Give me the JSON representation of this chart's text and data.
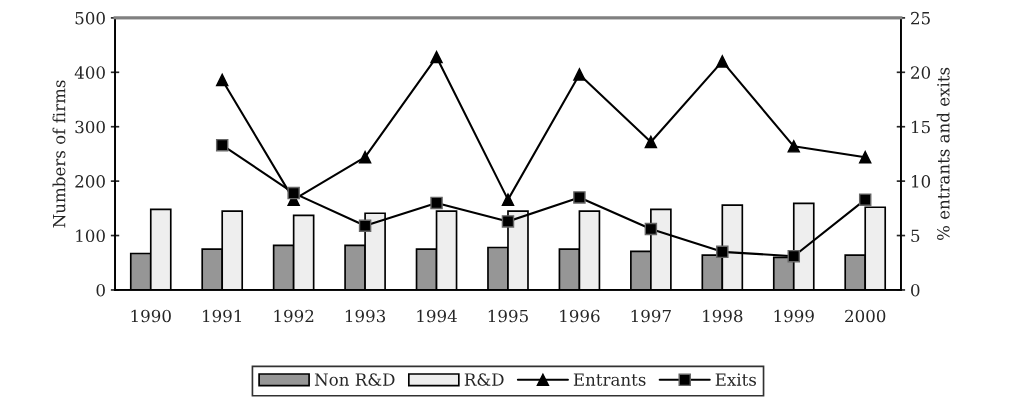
{
  "chart_data": {
    "type": "bar",
    "categories": [
      "1990",
      "1991",
      "1992",
      "1993",
      "1994",
      "1995",
      "1996",
      "1997",
      "1998",
      "1999",
      "2000"
    ],
    "ylabel": "Numbers of firms",
    "y2label": "% entrants and exits",
    "ylim": [
      0,
      500
    ],
    "yticks": [
      0,
      100,
      200,
      300,
      400,
      500
    ],
    "y2lim": [
      0,
      25
    ],
    "y2ticks": [
      0,
      5,
      10,
      15,
      20,
      25
    ],
    "series": [
      {
        "name": "Non R&D",
        "color": "#969696",
        "values": [
          67,
          75,
          82,
          82,
          75,
          78,
          75,
          71,
          64,
          60,
          64
        ]
      },
      {
        "name": "R&D",
        "color": "#eeeeee",
        "values": [
          148,
          145,
          137,
          141,
          145,
          145,
          145,
          148,
          156,
          159,
          152
        ]
      },
      {
        "name": "Entrants",
        "type": "line",
        "axis": "y2",
        "color": "#000000",
        "marker": "triangle",
        "values": [
          null,
          19.3,
          8.3,
          12.2,
          21.4,
          8.3,
          19.8,
          13.6,
          21.0,
          13.2,
          12.2
        ]
      },
      {
        "name": "Exits",
        "type": "line",
        "axis": "y2",
        "color": "#000000",
        "marker": "square",
        "values": [
          null,
          13.3,
          8.9,
          5.9,
          8.0,
          6.3,
          8.5,
          5.6,
          3.5,
          3.1,
          8.3
        ]
      }
    ],
    "legend": "bottom",
    "grid": false
  }
}
